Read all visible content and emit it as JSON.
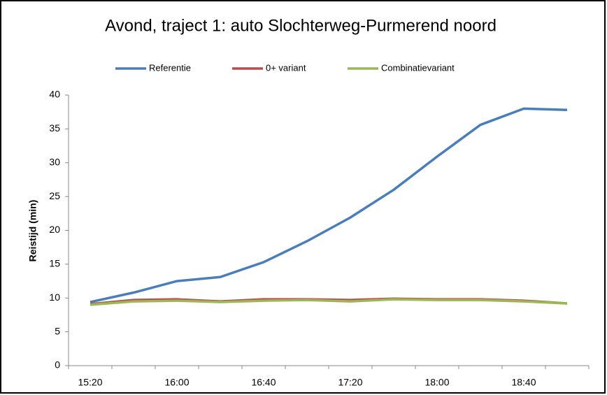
{
  "chart_data": {
    "type": "line",
    "title": "Avond, traject 1: auto Slochterweg-Purmerend noord",
    "y_label": "Reistijd  (min)",
    "categories": [
      "15:20",
      null,
      "16:00",
      null,
      "16:40",
      null,
      "17:20",
      null,
      "18:00",
      null,
      "18:40",
      null
    ],
    "series": [
      {
        "name": "Referentie",
        "color": "#4a7ebb",
        "values": [
          9.4,
          10.8,
          12.5,
          13.1,
          15.3,
          18.4,
          21.9,
          26.0,
          30.9,
          35.6,
          38.0,
          37.8
        ]
      },
      {
        "name": "0+ variant",
        "color": "#be4b48",
        "values": [
          9.1,
          9.7,
          9.8,
          9.5,
          9.8,
          9.8,
          9.7,
          9.9,
          9.8,
          9.8,
          9.6,
          9.2
        ]
      },
      {
        "name": "Combinatievariant",
        "color": "#98b954",
        "values": [
          9.0,
          9.5,
          9.6,
          9.4,
          9.6,
          9.7,
          9.5,
          9.8,
          9.7,
          9.7,
          9.5,
          9.2
        ]
      }
    ],
    "ylim": [
      0,
      40
    ],
    "yticks": [
      0,
      5,
      10,
      15,
      20,
      25,
      30,
      35,
      40
    ],
    "grid": false,
    "legend": "top"
  }
}
